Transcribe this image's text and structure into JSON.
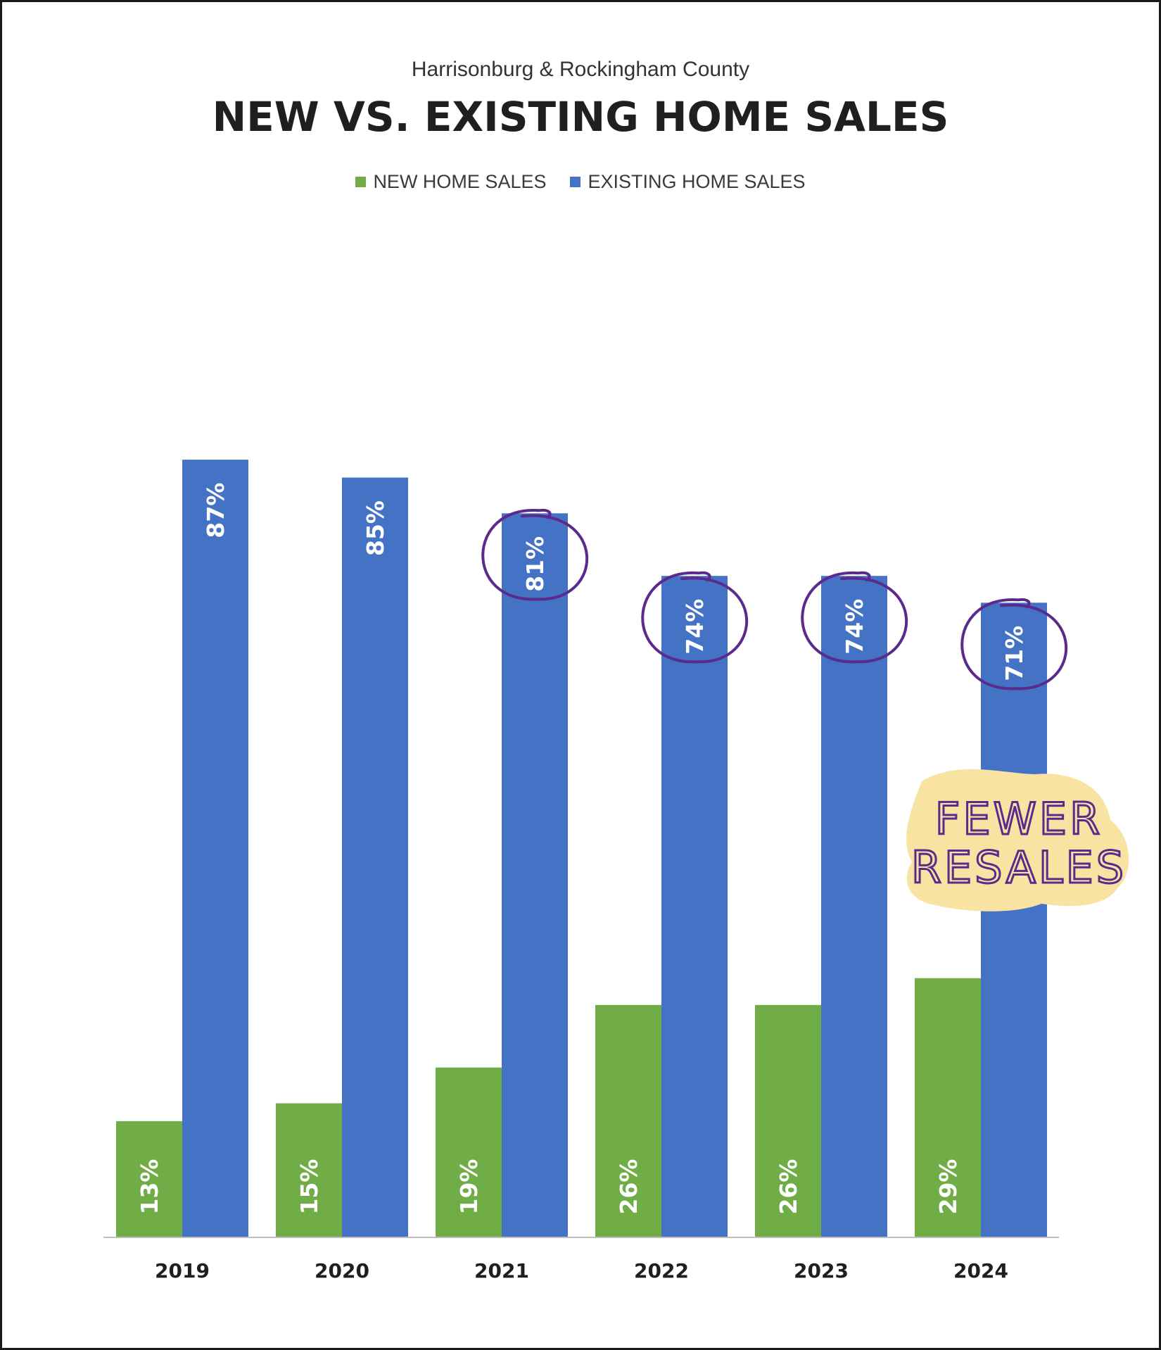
{
  "chart_data": {
    "type": "bar",
    "subtitle": "Harrisonburg & Rockingham County",
    "title": "NEW VS. EXISTING HOME SALES",
    "categories": [
      "2019",
      "2020",
      "2021",
      "2022",
      "2023",
      "2024"
    ],
    "series": [
      {
        "name": "NEW HOME SALES",
        "color": "#70ad47",
        "values": [
          13,
          15,
          19,
          26,
          26,
          29
        ],
        "labels": [
          "13%",
          "15%",
          "19%",
          "26%",
          "26%",
          "29%"
        ]
      },
      {
        "name": "EXISTING HOME SALES",
        "color": "#4472c4",
        "values": [
          87,
          85,
          81,
          74,
          74,
          71
        ],
        "labels": [
          "87%",
          "85%",
          "81%",
          "74%",
          "74%",
          "71%"
        ]
      }
    ],
    "legend": "top-center",
    "grid": false,
    "annotations": {
      "circled_categories": [
        "2021",
        "2022",
        "2023",
        "2024"
      ],
      "circle_color": "#5a2a8c",
      "note_lines": [
        "FEWER",
        "RESALES"
      ],
      "note_highlight_color": "#f9e3a3"
    }
  }
}
